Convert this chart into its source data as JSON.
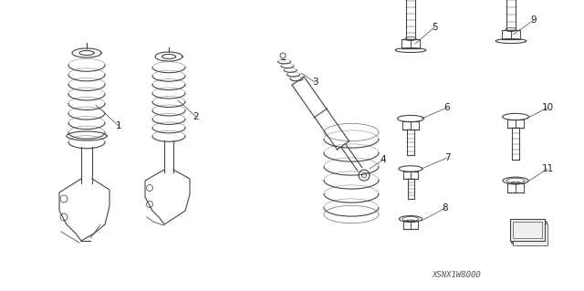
{
  "bg_color": "#ffffff",
  "line_color": "#444444",
  "label_color": "#222222",
  "diagram_code": "XSNX1W8000",
  "font_size_label": 7.5,
  "font_size_code": 6.5,
  "fig_w": 6.4,
  "fig_h": 3.19,
  "dpi": 100
}
